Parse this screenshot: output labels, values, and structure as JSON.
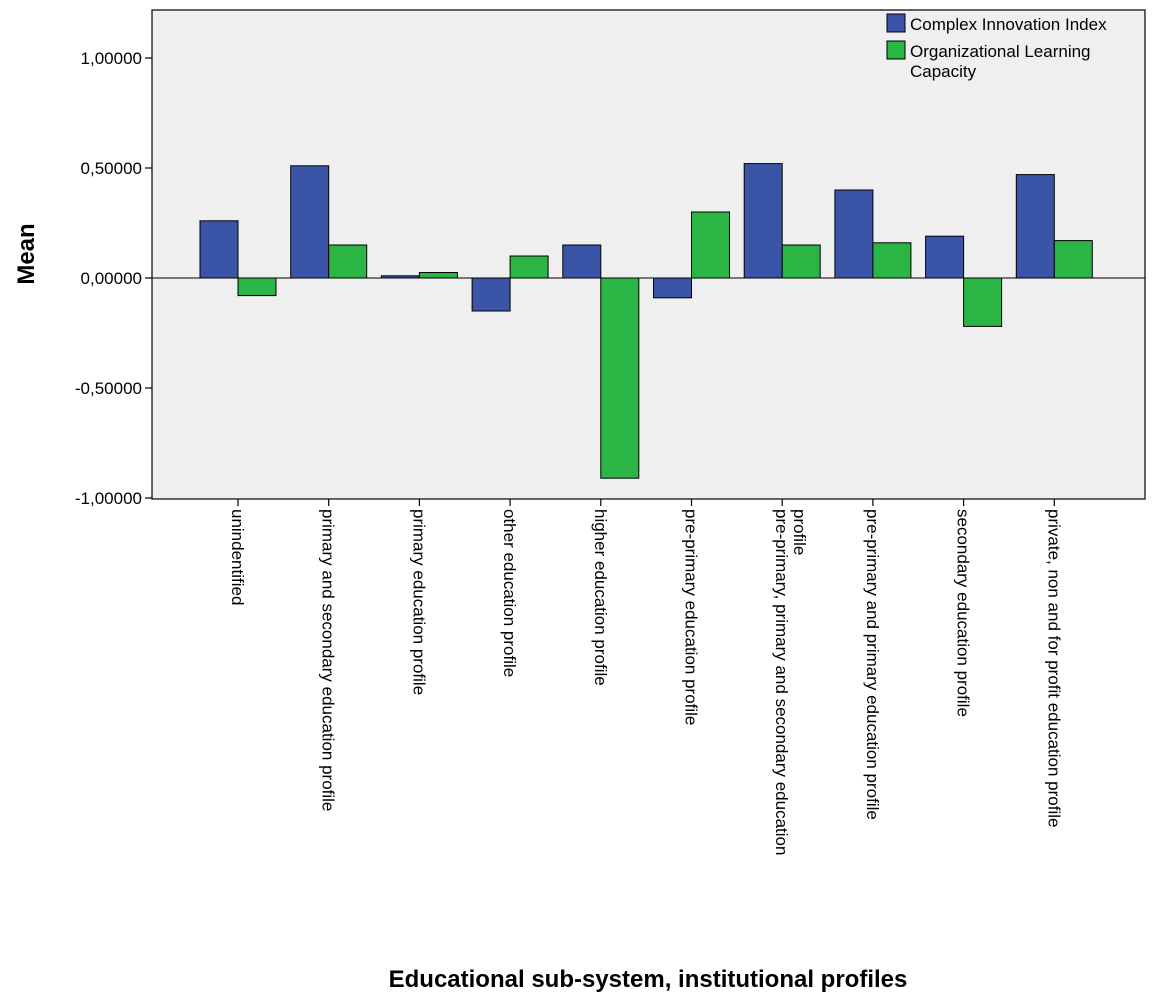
{
  "chart_data": {
    "type": "bar",
    "title": "",
    "xlabel": "Educational sub-system, institutional profiles",
    "ylabel": "Mean",
    "ylim": [
      -1.0,
      1.0
    ],
    "yticks": [
      {
        "value": 1.0,
        "label": "1,00000"
      },
      {
        "value": 0.5,
        "label": "0,50000"
      },
      {
        "value": 0.0,
        "label": "0,00000"
      },
      {
        "value": -0.5,
        "label": "-0,50000"
      },
      {
        "value": -1.0,
        "label": "-1,00000"
      }
    ],
    "grid": false,
    "legend_position": "top-right",
    "categories": [
      [
        "unindentified"
      ],
      [
        "primary and secondary education profile"
      ],
      [
        "primary education profile"
      ],
      [
        "other education profile"
      ],
      [
        "higher education profile"
      ],
      [
        "pre-primary education profile"
      ],
      [
        "pre-primary, primary and secondary education",
        "profile"
      ],
      [
        "pre-primary and primary education profile"
      ],
      [
        "secondary education profile"
      ],
      [
        "private, non and for profit education profile"
      ]
    ],
    "series": [
      {
        "name": "Complex Innovation Index",
        "color": "#3a55a8",
        "values": [
          0.26,
          0.51,
          0.01,
          -0.15,
          0.15,
          -0.09,
          0.52,
          0.4,
          0.19,
          0.47
        ]
      },
      {
        "name_lines": [
          "Organizational Learning",
          "Capacity"
        ],
        "color": "#2bb544",
        "values": [
          -0.08,
          0.15,
          0.025,
          0.1,
          -0.91,
          0.3,
          0.15,
          0.16,
          -0.22,
          0.17
        ]
      }
    ],
    "plot_background": "#efefef"
  }
}
